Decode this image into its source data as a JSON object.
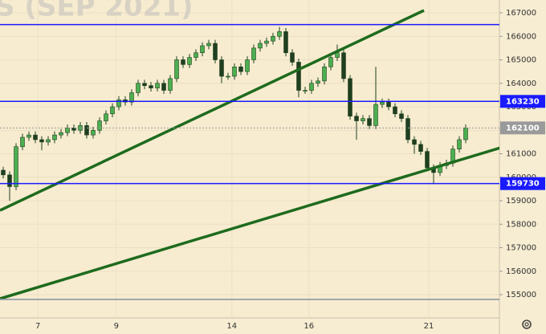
{
  "chart_data": {
    "type": "candlestick",
    "title": "S (SEP 2021)",
    "open": [
      160300,
      160100,
      159600,
      161300,
      161700,
      161800,
      161600,
      161500,
      161600,
      161800,
      161900,
      162100,
      162000,
      162200,
      161800,
      162000,
      162400,
      162700,
      163000,
      163300,
      163200,
      163600,
      164000,
      163900,
      163800,
      164000,
      163700,
      164200,
      165000,
      164800,
      165100,
      165300,
      165600,
      165700,
      165000,
      164300,
      164300,
      164700,
      164500,
      165000,
      165500,
      165700,
      165800,
      166000,
      166200,
      165300,
      164900,
      163700,
      163700,
      164000,
      164100,
      164700,
      165100,
      165300,
      164200,
      162600,
      162400,
      162500,
      162200,
      163100,
      163200,
      163000,
      162700,
      162500,
      161600,
      161400,
      161100,
      160400,
      160200,
      160500,
      160600,
      161200,
      161600
    ],
    "high": [
      160450,
      160250,
      161450,
      161850,
      161950,
      161950,
      161750,
      161750,
      161950,
      162050,
      162250,
      162250,
      162350,
      162350,
      162150,
      162550,
      162850,
      163150,
      163450,
      163450,
      163750,
      164150,
      164150,
      164050,
      164150,
      164150,
      164350,
      165150,
      165150,
      165250,
      165450,
      165750,
      165850,
      165850,
      165150,
      164450,
      164850,
      164850,
      165150,
      165650,
      165850,
      165950,
      166150,
      166400,
      166350,
      165450,
      165050,
      163850,
      164150,
      164250,
      164850,
      165250,
      165650,
      165450,
      164350,
      162750,
      162650,
      162650,
      164700,
      163350,
      163350,
      163150,
      162850,
      162650,
      161750,
      161550,
      161250,
      160550,
      160650,
      160750,
      161350,
      161750,
      162250
    ],
    "low": [
      159950,
      159000,
      159450,
      161150,
      161550,
      161450,
      161150,
      161350,
      161450,
      161650,
      161750,
      161850,
      161850,
      161650,
      161650,
      161850,
      162250,
      162550,
      162850,
      163050,
      163050,
      163450,
      163750,
      163650,
      163650,
      163550,
      163550,
      164050,
      164650,
      164650,
      164950,
      165150,
      165450,
      164850,
      164000,
      164150,
      164150,
      164350,
      164350,
      164850,
      165350,
      165550,
      165650,
      165850,
      165150,
      164750,
      163400,
      163550,
      163550,
      163850,
      163950,
      164550,
      164950,
      164050,
      162450,
      161600,
      162250,
      162050,
      162050,
      162950,
      162850,
      162550,
      162350,
      161450,
      161000,
      160950,
      160250,
      159700,
      160050,
      160350,
      160450,
      161050,
      161450
    ],
    "close": [
      160100,
      159600,
      161300,
      161700,
      161800,
      161600,
      161500,
      161600,
      161800,
      161900,
      162100,
      162000,
      162200,
      161800,
      162000,
      162400,
      162700,
      163000,
      163300,
      163200,
      163600,
      164000,
      163900,
      163800,
      164000,
      163700,
      164200,
      165000,
      164800,
      165100,
      165300,
      165600,
      165700,
      165000,
      164300,
      164300,
      164700,
      164500,
      165000,
      165500,
      165700,
      165800,
      166000,
      166200,
      165300,
      164900,
      163700,
      163700,
      164000,
      164100,
      164700,
      165100,
      165300,
      164200,
      162600,
      162400,
      162500,
      162200,
      163100,
      163200,
      163000,
      162700,
      162500,
      161600,
      161400,
      161100,
      160400,
      160200,
      160500,
      160600,
      161200,
      161600,
      162100
    ],
    "up_color": "#4caf50",
    "down_color": "#1f3f1f",
    "xlim": [
      -0.5,
      77.25
    ],
    "xticks": [
      {
        "value": 5.4,
        "label": "7"
      },
      {
        "value": 17.6,
        "label": "9"
      },
      {
        "value": 35.6,
        "label": "14"
      },
      {
        "value": 47.6,
        "label": "16"
      },
      {
        "value": 66.25,
        "label": "21"
      }
    ],
    "ylim": [
      154009,
      167547
    ],
    "yticks": [
      155000,
      156000,
      157000,
      158000,
      159000,
      160000,
      161000,
      162000,
      163000,
      164000,
      165000,
      166000,
      167000
    ],
    "grid": true,
    "levels": [
      {
        "value": 166500,
        "color": "#1a1aff"
      },
      {
        "value": 163230,
        "color": "#1a1aff",
        "tag": true
      },
      {
        "value": 159730,
        "color": "#1a1aff",
        "tag": true
      },
      {
        "value": 154800,
        "color": "#8890a0"
      },
      {
        "value": 162100,
        "color": "#9a9a9a",
        "tag": true,
        "dashed": true
      }
    ],
    "trendlines": [
      {
        "x": [
          -0.5,
          65.5
        ],
        "y": [
          158590,
          167103
        ],
        "color": "#1e6b1e"
      },
      {
        "x": [
          -0.5,
          78.25
        ],
        "y": [
          154829,
          161325
        ],
        "color": "#1e6b1e"
      }
    ]
  }
}
